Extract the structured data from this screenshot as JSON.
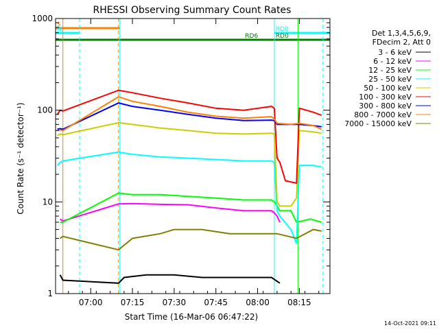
{
  "chart_data": {
    "type": "line",
    "title": "RHESSI Observing Summary Count Rates",
    "xlabel": "Start Time (16-Mar-06 06:47:22)",
    "ylabel": "Count Rate (s⁻¹ detector⁻¹)",
    "x_unit": "UT, 16-Mar-2006",
    "xlim": [
      "06:47:22",
      "08:26:00"
    ],
    "ylim": [
      1,
      1000
    ],
    "yscale": "log",
    "x_ticks": [
      "07:00",
      "07:15",
      "07:30",
      "07:45",
      "08:00",
      "08:15"
    ],
    "y_ticks": [
      1,
      10,
      100,
      1000
    ],
    "grid": false,
    "legend_position": "top-right",
    "legend_header": [
      "Det 1,3,4,5,6,9,",
      "FDecim 2, Att 0"
    ],
    "footer_date": "14-Oct-2021 09:11",
    "colors": {
      "background": "#ffffff",
      "axes": "#000000",
      "s_bar": "#ff7f00",
      "n_bar": "#00ffff",
      "rd_bar": "#007f00"
    },
    "series": [
      {
        "name": "3 - 6 keV",
        "color": "#000000",
        "points": [
          [
            "06:49",
            1.6
          ],
          [
            "06:50",
            1.4
          ],
          [
            "07:10",
            1.3
          ],
          [
            "07:12",
            1.5
          ],
          [
            "07:20",
            1.6
          ],
          [
            "07:30",
            1.6
          ],
          [
            "07:40",
            1.5
          ],
          [
            "07:50",
            1.5
          ],
          [
            "08:00",
            1.5
          ],
          [
            "08:05",
            1.5
          ],
          [
            "08:08",
            1.3
          ]
        ]
      },
      {
        "name": "6 - 12 keV",
        "color": "#ff00ff",
        "points": [
          [
            "06:49",
            6.5
          ],
          [
            "06:50",
            6.2
          ],
          [
            "07:10",
            9.5
          ],
          [
            "07:15",
            9.6
          ],
          [
            "07:25",
            9.4
          ],
          [
            "07:35",
            9.3
          ],
          [
            "07:45",
            8.6
          ],
          [
            "07:55",
            8.0
          ],
          [
            "08:05",
            8.0
          ],
          [
            "08:06",
            7.6
          ],
          [
            "08:07",
            7.0
          ],
          [
            "08:08",
            6.0
          ]
        ]
      },
      {
        "name": "12 - 25 keV",
        "color": "#00ff00",
        "points": [
          [
            "06:49",
            6.0
          ],
          [
            "06:50",
            6.0
          ],
          [
            "07:10",
            12.5
          ],
          [
            "07:15",
            12.0
          ],
          [
            "07:25",
            12.0
          ],
          [
            "07:35",
            11.5
          ],
          [
            "07:45",
            11.0
          ],
          [
            "07:55",
            10.5
          ],
          [
            "08:05",
            10.5
          ],
          [
            "08:06",
            10.0
          ],
          [
            "08:07",
            9.0
          ],
          [
            "08:08",
            8.0
          ],
          [
            "08:12",
            8.0
          ],
          [
            "08:14",
            6.0
          ],
          [
            "08:19",
            6.5
          ],
          [
            "08:23",
            6.0
          ]
        ]
      },
      {
        "name": "25 - 50 keV",
        "color": "#00ffff",
        "points": [
          [
            "06:48",
            25
          ],
          [
            "06:49",
            27
          ],
          [
            "06:50",
            28
          ],
          [
            "07:10",
            35
          ],
          [
            "07:15",
            33
          ],
          [
            "07:25",
            31
          ],
          [
            "07:35",
            30
          ],
          [
            "07:45",
            29
          ],
          [
            "07:55",
            28
          ],
          [
            "08:05",
            28
          ],
          [
            "08:06",
            27
          ],
          [
            "08:07",
            8.0
          ],
          [
            "08:08",
            7.0
          ],
          [
            "08:12",
            5.0
          ],
          [
            "08:14",
            3.5
          ],
          [
            "08:15",
            25
          ],
          [
            "08:20",
            25
          ],
          [
            "08:23",
            24
          ]
        ]
      },
      {
        "name": "50 - 100 keV",
        "color": "#cccc00",
        "points": [
          [
            "06:48",
            53
          ],
          [
            "06:49",
            55
          ],
          [
            "06:50",
            54
          ],
          [
            "07:10",
            73
          ],
          [
            "07:15",
            70
          ],
          [
            "07:25",
            64
          ],
          [
            "07:35",
            60
          ],
          [
            "07:45",
            56
          ],
          [
            "07:55",
            55
          ],
          [
            "08:05",
            56
          ],
          [
            "08:06",
            55
          ],
          [
            "08:07",
            10
          ],
          [
            "08:08",
            9
          ],
          [
            "08:12",
            9
          ],
          [
            "08:14",
            11
          ],
          [
            "08:15",
            60
          ],
          [
            "08:20",
            58
          ],
          [
            "08:23",
            56
          ]
        ]
      },
      {
        "name": "100 - 300 keV",
        "color": "#ff0000",
        "points": [
          [
            "06:48",
            90
          ],
          [
            "06:49",
            100
          ],
          [
            "06:50",
            98
          ],
          [
            "07:10",
            165
          ],
          [
            "07:15",
            155
          ],
          [
            "07:25",
            135
          ],
          [
            "07:35",
            120
          ],
          [
            "07:45",
            105
          ],
          [
            "07:55",
            100
          ],
          [
            "08:05",
            110
          ],
          [
            "08:06",
            105
          ],
          [
            "08:07",
            30
          ],
          [
            "08:08",
            27
          ],
          [
            "08:10",
            17
          ],
          [
            "08:14",
            16
          ],
          [
            "08:15",
            105
          ],
          [
            "08:20",
            95
          ],
          [
            "08:23",
            88
          ]
        ]
      },
      {
        "name": "300 - 800 keV",
        "color": "#0000ff",
        "points": [
          [
            "06:48",
            62
          ],
          [
            "06:49",
            63
          ],
          [
            "06:50",
            62
          ],
          [
            "07:10",
            120
          ],
          [
            "07:15",
            110
          ],
          [
            "07:25",
            100
          ],
          [
            "07:35",
            90
          ],
          [
            "07:45",
            82
          ],
          [
            "07:55",
            77
          ],
          [
            "08:05",
            78
          ],
          [
            "08:06",
            77
          ],
          [
            "08:07",
            70
          ],
          [
            "08:12",
            70
          ],
          [
            "08:15",
            70
          ],
          [
            "08:20",
            68
          ],
          [
            "08:23",
            66
          ]
        ]
      },
      {
        "name": "800 - 7000 keV",
        "color": "#ff7f00",
        "points": [
          [
            "06:48",
            60
          ],
          [
            "06:49",
            61
          ],
          [
            "06:50",
            60
          ],
          [
            "07:10",
            140
          ],
          [
            "07:15",
            125
          ],
          [
            "07:25",
            110
          ],
          [
            "07:35",
            95
          ],
          [
            "07:45",
            86
          ],
          [
            "07:55",
            82
          ],
          [
            "08:05",
            85
          ],
          [
            "08:06",
            80
          ],
          [
            "08:07",
            72
          ],
          [
            "08:12",
            70
          ],
          [
            "08:15",
            72
          ],
          [
            "08:20",
            68
          ],
          [
            "08:23",
            62
          ]
        ]
      },
      {
        "name": "7000 - 15000 keV",
        "color": "#7f7f00",
        "points": [
          [
            "06:49",
            4.0
          ],
          [
            "06:50",
            4.2
          ],
          [
            "07:10",
            3.0
          ],
          [
            "07:15",
            4.0
          ],
          [
            "07:25",
            4.5
          ],
          [
            "07:30",
            5.0
          ],
          [
            "07:40",
            5.0
          ],
          [
            "07:50",
            4.5
          ],
          [
            "08:00",
            4.5
          ],
          [
            "08:05",
            4.5
          ],
          [
            "08:07",
            4.5
          ],
          [
            "08:14",
            4.0
          ],
          [
            "08:20",
            5.0
          ],
          [
            "08:23",
            4.8
          ]
        ]
      }
    ],
    "vertical_lines": [
      {
        "time": "06:50:00",
        "color": "#ff7f00",
        "style": "solid"
      },
      {
        "time": "06:56:00",
        "color": "#00ffff",
        "style": "dashed"
      },
      {
        "time": "07:10:00",
        "color": "#ff7f00",
        "style": "dashed"
      },
      {
        "time": "07:10:30",
        "color": "#00ffff",
        "style": "solid"
      },
      {
        "time": "08:06:00",
        "color": "#00ffff",
        "style": "solid"
      },
      {
        "time": "08:14:30",
        "color": "#00ff00",
        "style": "solid"
      },
      {
        "time": "08:23:30",
        "color": "#00ffff",
        "style": "dashed"
      }
    ],
    "flag_bars": [
      {
        "label": "S",
        "color": "#ff7f00",
        "start": "06:47:22",
        "end": "07:10:30",
        "level": 1
      },
      {
        "label": "N",
        "color": "#00ffff",
        "start": "06:47:22",
        "end": "06:56:00",
        "level": 2
      },
      {
        "label": "",
        "color": "#007f00",
        "start": "06:47:22",
        "end": "08:26:00",
        "level": 3
      },
      {
        "label": "RD6",
        "color": "#007f00",
        "start": "07:55:00",
        "end": "08:06:00",
        "level": 3
      },
      {
        "label": "RD0",
        "color": "#00ffff",
        "start": "08:06:00",
        "end": "08:26:00",
        "level": 2
      },
      {
        "label": "RD0",
        "color": "#007f00",
        "start": "08:06:00",
        "end": "08:26:00",
        "level": 3
      }
    ]
  }
}
